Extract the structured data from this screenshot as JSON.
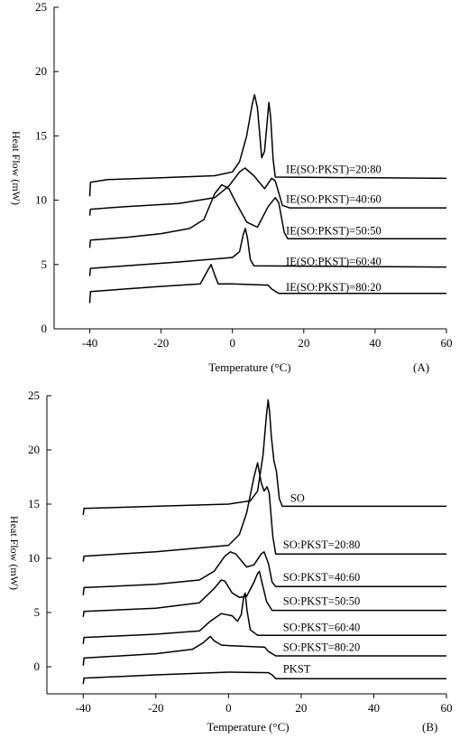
{
  "chart_data": [
    {
      "type": "line",
      "panel_label": "(A)",
      "xlabel": "Temperature (°C)",
      "ylabel": "Heat Flow (mW)",
      "xlim": [
        -50,
        60
      ],
      "ylim": [
        0,
        25
      ],
      "x_ticks": [
        -40,
        -20,
        0,
        20,
        40,
        60
      ],
      "y_ticks": [
        0,
        5,
        10,
        15,
        20,
        25
      ],
      "grid": false,
      "series": [
        {
          "name": "IE(SO:PKST)=20:80",
          "label_at": [
            15,
            12.1
          ],
          "points": [
            [
              -40,
              10.3
            ],
            [
              -39.8,
              11.4
            ],
            [
              -35,
              11.6
            ],
            [
              -20,
              11.75
            ],
            [
              -5,
              11.9
            ],
            [
              0,
              12.2
            ],
            [
              2,
              13
            ],
            [
              4,
              15
            ],
            [
              5.5,
              17.4
            ],
            [
              6.2,
              18.2
            ],
            [
              7,
              17.2
            ],
            [
              8.2,
              13.3
            ],
            [
              9,
              13.8
            ],
            [
              9.7,
              16
            ],
            [
              10.2,
              17.6
            ],
            [
              10.7,
              16.5
            ],
            [
              11.4,
              13.2
            ],
            [
              12,
              11.8
            ],
            [
              60,
              11.7
            ]
          ]
        },
        {
          "name": "IE(SO:PKST)=40:60",
          "label_at": [
            15,
            9.8
          ],
          "points": [
            [
              -40,
              8.8
            ],
            [
              -39.8,
              9.3
            ],
            [
              -30,
              9.5
            ],
            [
              -15,
              9.75
            ],
            [
              -5,
              10.2
            ],
            [
              -1,
              11.1
            ],
            [
              2,
              12.2
            ],
            [
              3.5,
              12.5
            ],
            [
              6,
              11.9
            ],
            [
              9,
              10.9
            ],
            [
              11,
              11.7
            ],
            [
              12,
              11.5
            ],
            [
              14,
              9.6
            ],
            [
              16,
              9.4
            ],
            [
              60,
              9.4
            ]
          ]
        },
        {
          "name": "IE(SO:PKST)=50:50",
          "label_at": [
            15,
            7.35
          ],
          "points": [
            [
              -40,
              6.3
            ],
            [
              -39.8,
              6.9
            ],
            [
              -30,
              7.1
            ],
            [
              -20,
              7.4
            ],
            [
              -12,
              7.8
            ],
            [
              -8,
              8.5
            ],
            [
              -5,
              10.5
            ],
            [
              -3,
              11.2
            ],
            [
              -1,
              10.9
            ],
            [
              1,
              9.8
            ],
            [
              4,
              8.3
            ],
            [
              7,
              7.9
            ],
            [
              10,
              9.5
            ],
            [
              12,
              10.2
            ],
            [
              13,
              9.8
            ],
            [
              14.5,
              7.5
            ],
            [
              15.5,
              7.0
            ],
            [
              60,
              7.0
            ]
          ]
        },
        {
          "name": "IE(SO:PKST)=60:40",
          "label_at": [
            15,
            4.95
          ],
          "points": [
            [
              -40,
              4.1
            ],
            [
              -39.8,
              4.7
            ],
            [
              -30,
              4.9
            ],
            [
              -15,
              5.2
            ],
            [
              0,
              5.55
            ],
            [
              2,
              6
            ],
            [
              3,
              7.3
            ],
            [
              3.6,
              7.8
            ],
            [
              4.2,
              7.1
            ],
            [
              5,
              5.4
            ],
            [
              6,
              4.9
            ],
            [
              60,
              4.8
            ]
          ]
        },
        {
          "name": "IE(SO:PKST)=80:20",
          "label_at": [
            15,
            2.95
          ],
          "points": [
            [
              -40,
              2.0
            ],
            [
              -39.8,
              2.9
            ],
            [
              -30,
              3.1
            ],
            [
              -20,
              3.3
            ],
            [
              -9,
              3.5
            ],
            [
              -7,
              4.5
            ],
            [
              -6,
              5.0
            ],
            [
              -5,
              4.2
            ],
            [
              -4,
              3.5
            ],
            [
              0,
              3.5
            ],
            [
              10,
              3.4
            ],
            [
              11,
              3.1
            ],
            [
              13,
              2.75
            ],
            [
              60,
              2.75
            ]
          ]
        }
      ]
    },
    {
      "type": "line",
      "panel_label": "(B)",
      "xlabel": "Temperature (°C)",
      "ylabel": "Heat Flow (mW)",
      "xlim": [
        -50,
        60
      ],
      "ylim": [
        -2.5,
        25
      ],
      "x_ticks": [
        -40,
        -20,
        0,
        20,
        40,
        60
      ],
      "y_ticks": [
        0,
        5,
        10,
        15,
        20,
        25
      ],
      "grid": false,
      "series": [
        {
          "name": "SO",
          "label_at": [
            17,
            15.2
          ],
          "points": [
            [
              -40,
              14.0
            ],
            [
              -39.8,
              14.6
            ],
            [
              -20,
              14.8
            ],
            [
              0,
              15.0
            ],
            [
              6,
              15.3
            ],
            [
              8,
              16.2
            ],
            [
              9.5,
              19.5
            ],
            [
              10.4,
              23
            ],
            [
              10.9,
              24.6
            ],
            [
              11.3,
              23.5
            ],
            [
              11.8,
              21.2
            ],
            [
              12.5,
              19
            ],
            [
              13.2,
              18
            ],
            [
              14,
              15.5
            ],
            [
              14.8,
              14.8
            ],
            [
              60,
              14.8
            ]
          ]
        },
        {
          "name": "SO:PKST=20:80",
          "label_at": [
            15,
            10.9
          ],
          "points": [
            [
              -40,
              9.7
            ],
            [
              -39.8,
              10.2
            ],
            [
              -20,
              10.6
            ],
            [
              0,
              11.2
            ],
            [
              3,
              12.2
            ],
            [
              5,
              14.2
            ],
            [
              7,
              17.5
            ],
            [
              8,
              18.8
            ],
            [
              9,
              17
            ],
            [
              9.8,
              16.2
            ],
            [
              10.6,
              16.6
            ],
            [
              11.2,
              16
            ],
            [
              12.2,
              12
            ],
            [
              13,
              10.4
            ],
            [
              60,
              10.4
            ]
          ]
        },
        {
          "name": "SO:PKST=40:60",
          "label_at": [
            15,
            7.9
          ],
          "points": [
            [
              -40,
              6.6
            ],
            [
              -39.8,
              7.3
            ],
            [
              -20,
              7.6
            ],
            [
              -8,
              8.0
            ],
            [
              -4,
              8.8
            ],
            [
              -1,
              10.2
            ],
            [
              0.5,
              10.6
            ],
            [
              2,
              10.4
            ],
            [
              5,
              9.2
            ],
            [
              7,
              9.4
            ],
            [
              9,
              10.4
            ],
            [
              9.8,
              10.6
            ],
            [
              11,
              9.5
            ],
            [
              12,
              7.8
            ],
            [
              13,
              7.4
            ],
            [
              60,
              7.4
            ]
          ]
        },
        {
          "name": "SO:PKST=50:50",
          "label_at": [
            15,
            5.7
          ],
          "points": [
            [
              -40,
              4.6
            ],
            [
              -39.8,
              5.1
            ],
            [
              -20,
              5.4
            ],
            [
              -8,
              5.9
            ],
            [
              -4,
              7.2
            ],
            [
              -2,
              8.0
            ],
            [
              -1,
              7.9
            ],
            [
              1,
              6.8
            ],
            [
              3,
              6.4
            ],
            [
              5,
              6.5
            ],
            [
              7,
              7.8
            ],
            [
              8,
              8.6
            ],
            [
              8.5,
              8.8
            ],
            [
              9.2,
              7.8
            ],
            [
              10.5,
              6.0
            ],
            [
              12,
              5.2
            ],
            [
              60,
              5.2
            ]
          ]
        },
        {
          "name": "SO:PKST=60:40",
          "label_at": [
            15,
            3.3
          ],
          "points": [
            [
              -40,
              2.1
            ],
            [
              -39.8,
              2.7
            ],
            [
              -20,
              3.0
            ],
            [
              -8,
              3.3
            ],
            [
              -5,
              4.2
            ],
            [
              -2,
              4.9
            ],
            [
              1,
              4.7
            ],
            [
              2.5,
              4.2
            ],
            [
              3.5,
              4.8
            ],
            [
              4.2,
              6.5
            ],
            [
              4.6,
              6.8
            ],
            [
              5.1,
              5.2
            ],
            [
              6,
              3.4
            ],
            [
              8,
              2.9
            ],
            [
              60,
              2.9
            ]
          ]
        },
        {
          "name": "SO:PKST=80:20",
          "label_at": [
            15,
            1.45
          ],
          "points": [
            [
              -40,
              0.1
            ],
            [
              -39.8,
              0.8
            ],
            [
              -20,
              1.2
            ],
            [
              -10,
              1.6
            ],
            [
              -7,
              2.2
            ],
            [
              -5,
              2.8
            ],
            [
              -4,
              2.4
            ],
            [
              -2,
              2.0
            ],
            [
              0,
              1.95
            ],
            [
              10,
              1.8
            ],
            [
              11,
              1.4
            ],
            [
              13,
              1.0
            ],
            [
              60,
              1.0
            ]
          ]
        },
        {
          "name": "PKST",
          "label_at": [
            15,
            -0.55
          ],
          "points": [
            [
              -40,
              -1.6
            ],
            [
              -39.8,
              -1.05
            ],
            [
              -20,
              -0.75
            ],
            [
              0,
              -0.5
            ],
            [
              11,
              -0.55
            ],
            [
              12,
              -0.75
            ],
            [
              13,
              -1.1
            ],
            [
              60,
              -1.1
            ]
          ]
        }
      ]
    }
  ]
}
